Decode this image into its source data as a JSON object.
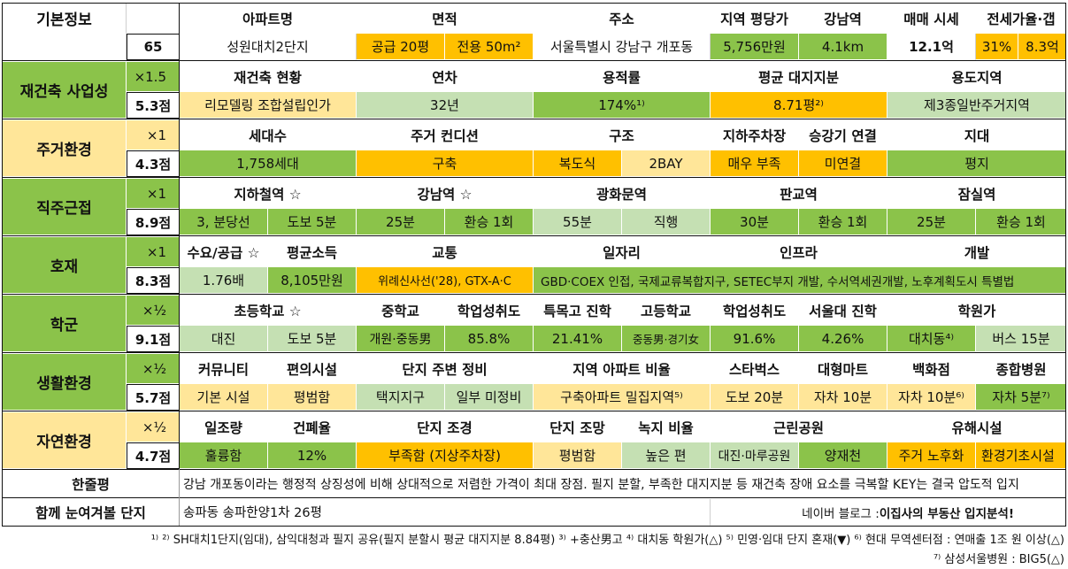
{
  "colors": {
    "green": "#8bc34a",
    "light_green": "#c5e0b3",
    "orange": "#ffc000",
    "yellow": "#ffe699",
    "white": "#ffffff"
  },
  "basic": {
    "cat": "기본정보",
    "score": "65",
    "headers": [
      "아파트명",
      "면적",
      "주소",
      "지역 평당가",
      "강남역",
      "매매 시세",
      "전세가율·갭"
    ],
    "values": {
      "name": "성원대치2단지",
      "area1": "공급 20평",
      "area2": "전용 50m²",
      "address": "서울특별시 강남구 개포동",
      "price_per_pyeong": "5,756만원",
      "gangnam_dist": "4.1km",
      "sale_price": "12.1억",
      "jeonse_ratio": "31%",
      "gap": "8.3억"
    }
  },
  "rebuild": {
    "cat": "재건축 사업성",
    "mult": "×1.5",
    "score": "5.3점",
    "headers": [
      "재건축 현황",
      "연차",
      "용적률",
      "평균 대지지분",
      "용도지역"
    ],
    "values": [
      "리모델링 조합설립인가",
      "32년",
      "174%¹⁾",
      "8.71평²⁾",
      "제3종일반주거지역"
    ]
  },
  "living": {
    "cat": "주거환경",
    "mult": "×1",
    "score": "4.3점",
    "headers": [
      "세대수",
      "주거 컨디션",
      "구조",
      "지하주차장",
      "승강기 연결",
      "지대"
    ],
    "values": [
      "1,758세대",
      "구축",
      "복도식",
      "2BAY",
      "매우 부족",
      "미연결",
      "평지"
    ]
  },
  "commute": {
    "cat": "직주근접",
    "mult": "×1",
    "score": "8.9점",
    "headers": [
      "지하철역 ☆",
      "강남역 ☆",
      "광화문역",
      "판교역",
      "잠실역"
    ],
    "values": [
      "3, 분당선",
      "도보 5분",
      "25분",
      "환승 1회",
      "55분",
      "직행",
      "30분",
      "환승 1회",
      "25분",
      "환승 1회"
    ]
  },
  "benefit": {
    "cat": "호재",
    "mult": "×1",
    "score": "8.3점",
    "headers": [
      "수요/공급 ☆",
      "평균소득",
      "교통",
      "일자리",
      "인프라",
      "개발"
    ],
    "values": [
      "1.76배",
      "8,105만원",
      "위례신사선('28), GTX-A·C",
      "GBD·COEX 인접, 국제교류복합지구, SETEC부지 개발, 수서역세권개발, 노후계획도시 특별법"
    ]
  },
  "school": {
    "cat": "학군",
    "mult": "×½",
    "score": "9.1점",
    "headers": [
      "초등학교 ☆",
      "중학교",
      "학업성취도",
      "특목고 진학",
      "고등학교",
      "학업성취도",
      "서울대 진학",
      "학원가"
    ],
    "values": [
      "대진",
      "도보 5분",
      "개원·중동男",
      "85.8%",
      "21.41%",
      "중동男·경기女",
      "91.6%",
      "4.26%",
      "대치동⁴⁾",
      "버스 15분"
    ]
  },
  "life": {
    "cat": "생활환경",
    "mult": "×½",
    "score": "5.7점",
    "headers": [
      "커뮤니티",
      "편의시설",
      "단지 주변 정비",
      "지역 아파트 비율",
      "스타벅스",
      "대형마트",
      "백화점",
      "종합병원"
    ],
    "values": [
      "기본 시설",
      "평범함",
      "택지지구",
      "일부 미정비",
      "구축아파트 밀집지역⁵⁾",
      "도보 20분",
      "자차 10분",
      "자차 10분⁶⁾",
      "자차 5분⁷⁾"
    ]
  },
  "nature": {
    "cat": "자연환경",
    "mult": "×½",
    "score": "4.7점",
    "headers": [
      "일조량",
      "건폐율",
      "단지 조경",
      "단지 조망",
      "녹지 비율",
      "근린공원",
      "유해시설"
    ],
    "values": [
      "훌륭함",
      "12%",
      "부족함 (지상주차장)",
      "평범함",
      "높은 편",
      "대진·마루공원",
      "양재천",
      "주거 노후화",
      "환경기초시설"
    ]
  },
  "summary": {
    "label": "한줄평",
    "text": "강남 개포동이라는 행정적 상징성에 비해 상대적으로 저렴한 가격이 최대 장점. 필지 분할, 부족한 대지지분 등 재건축 장애 요소를 극복할 KEY는 결국 압도적 입지"
  },
  "compare": {
    "label": "함께 눈여겨볼 단지",
    "text": "송파동 송파한양1차 26평",
    "blog_prefix": "네이버 블로그 : ",
    "blog_name": "이집사의 부동산 입지분석!"
  },
  "footnotes": [
    "¹⁾ ²⁾ SH대치1단지(임대), 삼익대청과 필지 공유(필지 분할시 평균 대지지분 8.84평) ³⁾ +충산男고 ⁴⁾ 대치동 학원가(△) ⁵⁾ 민영·임대 단지 혼재(▼) ⁶⁾ 현대 무역센터점 : 연매출 1조 원 이상(△)",
    "⁷⁾ 삼성서울병원 : BIG5(△)"
  ]
}
